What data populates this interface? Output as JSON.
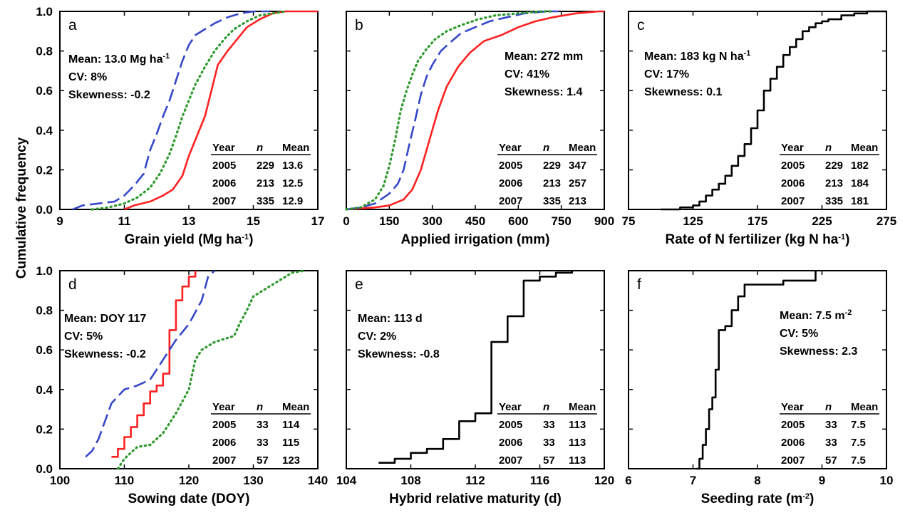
{
  "figure": {
    "ylabel": "Cumulative frequency",
    "colors": {
      "2005": "#ff2020",
      "2006": "#3548c8",
      "2007": "#2e9a2e",
      "single": "#000000"
    }
  },
  "chart_data": [
    {
      "id": "a",
      "type": "line",
      "letter": "a",
      "xlabel": "Grain yield (Mg ha",
      "xlabel_sup": "-1",
      "xlabel_after": ")",
      "xlim": [
        9,
        17
      ],
      "ylim": [
        0,
        1
      ],
      "xticks": [
        "9",
        "11",
        "13",
        "15",
        "17"
      ],
      "yticks": [
        "0.0",
        "0.2",
        "0.4",
        "0.6",
        "0.8",
        "1.0"
      ],
      "stats": [
        {
          "text": "Mean: 13.0 Mg ha",
          "sup": "-1"
        },
        {
          "text": "CV: 8%"
        },
        {
          "text": "Skewness: -0.2"
        }
      ],
      "table": {
        "header": [
          "Year",
          "n",
          "Mean"
        ],
        "rows": [
          [
            "2005",
            "229",
            "13.6"
          ],
          [
            "2006",
            "213",
            "12.5"
          ],
          [
            "2007",
            "335",
            "12.9"
          ]
        ]
      },
      "series": [
        {
          "year": "2005",
          "style": "solid",
          "x": [
            11.0,
            11.3,
            11.8,
            12.2,
            12.5,
            12.8,
            13.0,
            13.2,
            13.5,
            13.7,
            13.9,
            14.2,
            14.5,
            14.8,
            15.2,
            15.6,
            16.0,
            16.5,
            17.0
          ],
          "y": [
            0.0,
            0.02,
            0.04,
            0.07,
            0.1,
            0.17,
            0.27,
            0.35,
            0.47,
            0.6,
            0.73,
            0.8,
            0.86,
            0.92,
            0.96,
            0.99,
            1.0,
            1.0,
            1.0
          ]
        },
        {
          "year": "2006",
          "style": "dashed",
          "x": [
            9.4,
            9.7,
            10.2,
            10.7,
            11.0,
            11.3,
            11.6,
            11.8,
            12.0,
            12.2,
            12.4,
            12.6,
            12.8,
            13.0,
            13.2,
            13.5,
            13.8,
            14.2,
            14.6,
            15.0,
            15.5
          ],
          "y": [
            0.0,
            0.02,
            0.03,
            0.04,
            0.07,
            0.12,
            0.18,
            0.3,
            0.38,
            0.47,
            0.55,
            0.65,
            0.75,
            0.83,
            0.88,
            0.91,
            0.94,
            0.97,
            0.99,
            1.0,
            1.0
          ]
        },
        {
          "year": "2007",
          "style": "dotted",
          "x": [
            10.0,
            10.5,
            11.0,
            11.4,
            11.8,
            12.1,
            12.4,
            12.6,
            12.8,
            13.0,
            13.2,
            13.5,
            13.8,
            14.1,
            14.4,
            14.8,
            15.2,
            15.6,
            16.0
          ],
          "y": [
            0.0,
            0.01,
            0.03,
            0.06,
            0.11,
            0.18,
            0.28,
            0.37,
            0.47,
            0.55,
            0.63,
            0.72,
            0.8,
            0.86,
            0.91,
            0.95,
            0.98,
            0.99,
            1.0
          ]
        }
      ]
    },
    {
      "id": "b",
      "type": "line",
      "letter": "b",
      "xlabel": "Applied irrigation (mm)",
      "xlim": [
        0,
        900
      ],
      "ylim": [
        0,
        1
      ],
      "xticks": [
        "0",
        "150",
        "300",
        "450",
        "600",
        "750",
        "900"
      ],
      "yticks": [],
      "stats": [
        {
          "text": "Mean: 272 mm"
        },
        {
          "text": "CV: 41%"
        },
        {
          "text": "Skewness: 1.4"
        }
      ],
      "table": {
        "header": [
          "Year",
          "n",
          "Mean"
        ],
        "rows": [
          [
            "2005",
            "229",
            "347"
          ],
          [
            "2006",
            "213",
            "257"
          ],
          [
            "2007",
            "335",
            "213"
          ]
        ]
      },
      "series": [
        {
          "year": "2005",
          "style": "solid",
          "x": [
            0,
            50,
            100,
            150,
            200,
            230,
            260,
            290,
            320,
            350,
            390,
            430,
            480,
            540,
            600,
            660,
            720,
            800,
            880,
            900
          ],
          "y": [
            0.0,
            0.005,
            0.01,
            0.02,
            0.05,
            0.1,
            0.2,
            0.35,
            0.5,
            0.62,
            0.72,
            0.79,
            0.85,
            0.88,
            0.92,
            0.95,
            0.97,
            0.99,
            1.0,
            1.0
          ]
        },
        {
          "year": "2006",
          "style": "dashed",
          "x": [
            0,
            50,
            100,
            150,
            180,
            200,
            220,
            240,
            260,
            280,
            300,
            330,
            360,
            400,
            450,
            500,
            560,
            620,
            700,
            740
          ],
          "y": [
            0.0,
            0.01,
            0.03,
            0.08,
            0.13,
            0.2,
            0.33,
            0.45,
            0.58,
            0.67,
            0.73,
            0.8,
            0.84,
            0.89,
            0.92,
            0.95,
            0.97,
            0.99,
            1.0,
            1.0
          ]
        },
        {
          "year": "2007",
          "style": "dotted",
          "x": [
            0,
            50,
            100,
            130,
            150,
            170,
            190,
            210,
            230,
            250,
            280,
            310,
            350,
            400,
            460,
            520,
            600,
            680,
            720
          ],
          "y": [
            0.0,
            0.01,
            0.05,
            0.12,
            0.22,
            0.35,
            0.5,
            0.6,
            0.68,
            0.75,
            0.81,
            0.86,
            0.9,
            0.93,
            0.96,
            0.98,
            0.99,
            1.0,
            1.0
          ]
        }
      ]
    },
    {
      "id": "c",
      "type": "line",
      "letter": "c",
      "xlabel": "Rate of N fertilizer (kg N ha",
      "xlabel_sup": "-1",
      "xlabel_after": ")",
      "xlim": [
        75,
        275
      ],
      "ylim": [
        0,
        1
      ],
      "xticks": [
        "75",
        "125",
        "175",
        "225",
        "275"
      ],
      "yticks": [],
      "stats": [
        {
          "text": "Mean: 183 kg N ha",
          "sup": "-1"
        },
        {
          "text": "CV: 17%"
        },
        {
          "text": "Skewness: 0.1"
        }
      ],
      "table": {
        "header": [
          "Year",
          "n",
          "Mean"
        ],
        "rows": [
          [
            "2005",
            "229",
            "182"
          ],
          [
            "2006",
            "213",
            "184"
          ],
          [
            "2007",
            "335",
            "181"
          ]
        ]
      },
      "series": [
        {
          "year": "all",
          "style": "step",
          "x": [
            100,
            115,
            125,
            130,
            135,
            140,
            145,
            150,
            155,
            160,
            165,
            170,
            175,
            180,
            185,
            190,
            195,
            200,
            205,
            210,
            215,
            220,
            225,
            230,
            240,
            250,
            260,
            270,
            275
          ],
          "y": [
            0.0,
            0.01,
            0.02,
            0.04,
            0.07,
            0.1,
            0.13,
            0.17,
            0.22,
            0.27,
            0.33,
            0.41,
            0.5,
            0.6,
            0.66,
            0.72,
            0.78,
            0.82,
            0.86,
            0.9,
            0.92,
            0.94,
            0.95,
            0.96,
            0.98,
            0.99,
            1.0,
            1.0,
            1.0
          ]
        }
      ]
    },
    {
      "id": "d",
      "type": "line",
      "letter": "d",
      "xlabel": "Sowing date (DOY)",
      "xlim": [
        100,
        140
      ],
      "ylim": [
        0,
        1
      ],
      "xticks": [
        "100",
        "110",
        "120",
        "130",
        "140"
      ],
      "yticks": [
        "0.0",
        "0.2",
        "0.4",
        "0.6",
        "0.8",
        "1.0"
      ],
      "stats": [
        {
          "text": "Mean: DOY 117"
        },
        {
          "text": "CV: 5%"
        },
        {
          "text": "Skewness: -0.2"
        }
      ],
      "table": {
        "header": [
          "Year",
          "n",
          "Mean"
        ],
        "rows": [
          [
            "2005",
            "33",
            "114"
          ],
          [
            "2006",
            "33",
            "115"
          ],
          [
            "2007",
            "57",
            "123"
          ]
        ]
      },
      "series": [
        {
          "year": "2005",
          "style": "step",
          "x": [
            108,
            109,
            110,
            111,
            112,
            113,
            114,
            115,
            116,
            117,
            118,
            119,
            120,
            121
          ],
          "y": [
            0.06,
            0.1,
            0.16,
            0.21,
            0.27,
            0.33,
            0.39,
            0.42,
            0.48,
            0.7,
            0.85,
            0.92,
            0.97,
            1.0
          ]
        },
        {
          "year": "2006",
          "style": "dashed",
          "x": [
            104,
            105,
            106,
            107,
            108,
            110,
            112,
            114,
            116,
            118,
            120,
            122,
            123,
            124
          ],
          "y": [
            0.06,
            0.09,
            0.15,
            0.24,
            0.33,
            0.4,
            0.42,
            0.45,
            0.55,
            0.65,
            0.73,
            0.85,
            0.97,
            1.0
          ]
        },
        {
          "year": "2007",
          "style": "dotted",
          "x": [
            109,
            110,
            112,
            114,
            116,
            118,
            120,
            121,
            122,
            124,
            126,
            127,
            128,
            129,
            130,
            132,
            134,
            136,
            138
          ],
          "y": [
            0.0,
            0.05,
            0.11,
            0.12,
            0.18,
            0.28,
            0.4,
            0.55,
            0.6,
            0.64,
            0.66,
            0.67,
            0.74,
            0.8,
            0.87,
            0.91,
            0.95,
            0.99,
            1.0
          ]
        }
      ]
    },
    {
      "id": "e",
      "type": "line",
      "letter": "e",
      "xlabel": "Hybrid relative maturity (d)",
      "xlim": [
        104,
        120
      ],
      "ylim": [
        0,
        1
      ],
      "xticks": [
        "104",
        "108",
        "112",
        "116",
        "120"
      ],
      "yticks": [],
      "stats": [
        {
          "text": "Mean: 113 d"
        },
        {
          "text": "CV: 2%"
        },
        {
          "text": "Skewness: -0.8"
        }
      ],
      "table": {
        "header": [
          "Year",
          "n",
          "Mean"
        ],
        "rows": [
          [
            "2005",
            "33",
            "113"
          ],
          [
            "2006",
            "33",
            "113"
          ],
          [
            "2007",
            "57",
            "113"
          ]
        ]
      },
      "series": [
        {
          "year": "all",
          "style": "step",
          "x": [
            106,
            107,
            108,
            109,
            110,
            111,
            112,
            113,
            114,
            115,
            116,
            117,
            118
          ],
          "y": [
            0.03,
            0.05,
            0.08,
            0.1,
            0.15,
            0.24,
            0.28,
            0.64,
            0.77,
            0.95,
            0.97,
            0.99,
            1.0
          ]
        }
      ]
    },
    {
      "id": "f",
      "type": "line",
      "letter": "f",
      "xlabel": "Seeding rate (m",
      "xlabel_sup": "-2",
      "xlabel_after": ")",
      "xlim": [
        6,
        10
      ],
      "ylim": [
        0,
        1
      ],
      "xticks": [
        "6",
        "7",
        "8",
        "9",
        "10"
      ],
      "yticks": [],
      "stats": [
        {
          "text": "Mean: 7.5 m",
          "sup": "-2"
        },
        {
          "text": "CV: 5%"
        },
        {
          "text": "Skewness: 2.3"
        }
      ],
      "table": {
        "header": [
          "Year",
          "n",
          "Mean"
        ],
        "rows": [
          [
            "2005",
            "33",
            "7.5"
          ],
          [
            "2006",
            "33",
            "7.5"
          ],
          [
            "2007",
            "57",
            "7.5"
          ]
        ]
      },
      "series": [
        {
          "year": "all",
          "style": "step",
          "x": [
            7.05,
            7.1,
            7.15,
            7.2,
            7.25,
            7.3,
            7.35,
            7.4,
            7.5,
            7.6,
            7.7,
            7.8,
            8.4,
            8.9
          ],
          "y": [
            0.0,
            0.05,
            0.12,
            0.2,
            0.3,
            0.36,
            0.5,
            0.7,
            0.72,
            0.8,
            0.87,
            0.93,
            0.95,
            1.0
          ]
        }
      ]
    }
  ]
}
